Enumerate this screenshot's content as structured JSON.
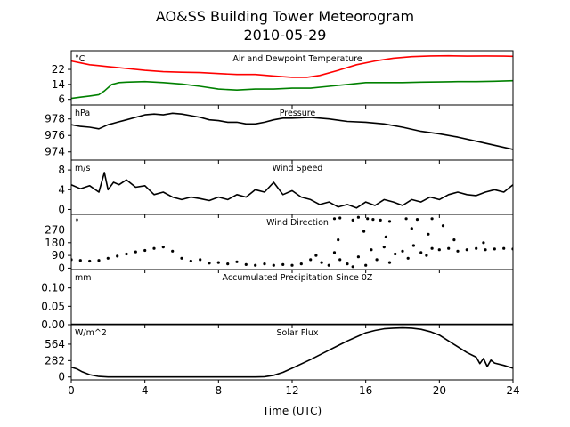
{
  "figure": {
    "title": "AO&SS Building Tower Meteorogram",
    "subtitle": "2010-05-29",
    "xlabel": "Time (UTC)"
  },
  "chart_data": [
    {
      "type": "line",
      "id": "temp",
      "title": "Air and Dewpoint Temperature",
      "unit": "°C",
      "xlim": [
        0,
        24
      ],
      "ylim": [
        3,
        32
      ],
      "yticks": [
        "6",
        "14",
        "22"
      ],
      "xticks": [
        "0",
        "4",
        "8",
        "12",
        "16",
        "20",
        "24"
      ],
      "series": [
        {
          "color": "#ff0000",
          "x": [
            0,
            0.5,
            1,
            1.5,
            2,
            3,
            4,
            5,
            6,
            7,
            8,
            9,
            10,
            11,
            12,
            12.8,
            13.5,
            14.5,
            15.5,
            16.5,
            17.5,
            18.5,
            19.5,
            20.5,
            21.5,
            22.5,
            23.5,
            24
          ],
          "y": [
            26.5,
            25.5,
            24.5,
            24,
            23.5,
            22.5,
            21.5,
            20.8,
            20.5,
            20.3,
            19.8,
            19.3,
            19.3,
            18.5,
            17.8,
            17.8,
            18.8,
            21.5,
            24.5,
            26.5,
            28,
            28.8,
            29.2,
            29.3,
            29.1,
            29.2,
            29.1,
            29
          ]
        },
        {
          "color": "#008000",
          "x": [
            0,
            0.5,
            1,
            1.5,
            1.8,
            2.2,
            2.6,
            3,
            4,
            5,
            6,
            7,
            8,
            9,
            10,
            11,
            12,
            13,
            14,
            15,
            16,
            17,
            18,
            19,
            20,
            21,
            22,
            23,
            24
          ],
          "y": [
            6.5,
            7.2,
            7.8,
            8.5,
            10.5,
            14,
            15,
            15.2,
            15.5,
            15,
            14.2,
            13,
            11.5,
            11,
            11.5,
            11.5,
            12,
            12,
            13,
            14,
            15,
            15,
            15,
            15.2,
            15.3,
            15.5,
            15.5,
            15.7,
            16
          ]
        }
      ]
    },
    {
      "type": "line",
      "id": "pressure",
      "title": "Pressure",
      "unit": "hPa",
      "xlim": [
        0,
        24
      ],
      "ylim": [
        973,
        979.7
      ],
      "yticks": [
        "974",
        "976",
        "978"
      ],
      "series": [
        {
          "color": "#000000",
          "x": [
            0,
            0.5,
            1,
            1.5,
            2,
            2.5,
            3,
            3.5,
            4,
            4.5,
            5,
            5.5,
            6,
            6.5,
            7,
            7.5,
            8,
            8.5,
            9,
            9.5,
            10,
            10.5,
            11,
            11.5,
            12,
            13,
            14,
            15,
            16,
            17,
            18,
            19,
            20,
            21,
            22,
            23,
            24
          ],
          "y": [
            977.3,
            977.1,
            977.0,
            976.8,
            977.3,
            977.6,
            977.9,
            978.2,
            978.5,
            978.6,
            978.5,
            978.7,
            978.6,
            978.4,
            978.2,
            977.9,
            977.8,
            977.6,
            977.6,
            977.4,
            977.4,
            977.6,
            977.9,
            978.1,
            978.1,
            978.2,
            978.0,
            977.7,
            977.6,
            977.4,
            977.0,
            976.5,
            976.2,
            975.8,
            975.3,
            974.8,
            974.3
          ]
        }
      ]
    },
    {
      "type": "line",
      "id": "wind_speed",
      "title": "Wind Speed",
      "unit": "m/s",
      "xlim": [
        0,
        24
      ],
      "ylim": [
        -1,
        10
      ],
      "yticks": [
        "0",
        "4",
        "8"
      ],
      "series": [
        {
          "color": "#000000",
          "x": [
            0,
            0.5,
            1,
            1.5,
            1.8,
            2,
            2.3,
            2.6,
            3,
            3.5,
            4,
            4.5,
            5,
            5.5,
            6,
            6.5,
            7,
            7.5,
            8,
            8.5,
            9,
            9.5,
            10,
            10.5,
            11,
            11.5,
            12,
            12.5,
            13,
            13.5,
            14,
            14.5,
            15,
            15.5,
            16,
            16.5,
            17,
            17.5,
            18,
            18.5,
            19,
            19.5,
            20,
            20.5,
            21,
            21.5,
            22,
            22.5,
            23,
            23.5,
            24
          ],
          "y": [
            5,
            4.2,
            4.8,
            3.5,
            7.5,
            4,
            5.5,
            5,
            6,
            4.5,
            4.8,
            3,
            3.5,
            2.5,
            2,
            2.5,
            2.2,
            1.8,
            2.5,
            2,
            3,
            2.5,
            4,
            3.5,
            5.5,
            3,
            3.8,
            2.5,
            2,
            1,
            1.5,
            0.5,
            1,
            0.3,
            1.5,
            0.8,
            2,
            1.5,
            0.8,
            2,
            1.5,
            2.5,
            2,
            3,
            3.5,
            3,
            2.8,
            3.5,
            4,
            3.5,
            5
          ]
        }
      ]
    },
    {
      "type": "scatter",
      "id": "wind_direction",
      "title": "Wind Direction",
      "unit": "°",
      "xlim": [
        0,
        24
      ],
      "ylim": [
        -10,
        380
      ],
      "yticks": [
        "0",
        "90",
        "180",
        "270"
      ],
      "series": [
        {
          "color": "#000000",
          "x": [
            0,
            0.5,
            1,
            1.5,
            2,
            2.5,
            3,
            3.5,
            4,
            4.5,
            5,
            5.5,
            6,
            6.5,
            7,
            7.5,
            8,
            8.5,
            9,
            9.5,
            10,
            10.5,
            11,
            11.5,
            12,
            12.5,
            13,
            13.3,
            13.6,
            14,
            14.3,
            14.6,
            15,
            15.3,
            15.6,
            16,
            16.3,
            16.6,
            17,
            17.3,
            17.6,
            18,
            18.3,
            18.6,
            19,
            19.3,
            19.6,
            20,
            20.5,
            21,
            21.5,
            22,
            22.5,
            23,
            23.5,
            24
          ],
          "y": [
            60,
            55,
            50,
            55,
            70,
            85,
            100,
            115,
            125,
            140,
            150,
            120,
            70,
            50,
            60,
            35,
            40,
            30,
            45,
            25,
            20,
            30,
            20,
            25,
            20,
            30,
            60,
            90,
            40,
            20,
            110,
            60,
            30,
            10,
            80,
            20,
            130,
            60,
            150,
            40,
            100,
            120,
            70,
            160,
            110,
            90,
            140,
            130,
            140,
            120,
            130,
            140,
            130,
            135,
            140,
            135
          ]
        },
        {
          "color": "#000000",
          "x": [
            14.3,
            14.6,
            15.3,
            15.6,
            16.1,
            16.4,
            16.8,
            17.3,
            18.2,
            18.8,
            19.6,
            20.2,
            14.5,
            15.9,
            17.1,
            18.5,
            19.4,
            20.8,
            22.4
          ],
          "y": [
            350,
            355,
            340,
            360,
            350,
            345,
            340,
            330,
            350,
            345,
            350,
            300,
            200,
            260,
            220,
            280,
            240,
            200,
            180
          ]
        }
      ]
    },
    {
      "type": "line",
      "id": "precip",
      "title": "Accumulated Precipitation Since 0Z",
      "unit": "mm",
      "xlim": [
        0,
        24
      ],
      "ylim": [
        0,
        0.15
      ],
      "yticks": [
        "0.00",
        "0.05",
        "0.10"
      ],
      "series": [
        {
          "color": "#000000",
          "x": [
            0,
            24
          ],
          "y": [
            0,
            0
          ]
        }
      ]
    },
    {
      "type": "line",
      "id": "solar",
      "title": "Solar Flux",
      "unit": "W/m^2",
      "xlim": [
        0,
        24
      ],
      "ylim": [
        -50,
        900
      ],
      "yticks": [
        "0",
        "282",
        "564"
      ],
      "series": [
        {
          "color": "#000000",
          "x": [
            0,
            0.3,
            0.6,
            1,
            1.5,
            2,
            3,
            4,
            5,
            6,
            7,
            8,
            9,
            10,
            10.5,
            11,
            11.5,
            12,
            13,
            14,
            15,
            16,
            16.5,
            17,
            17.5,
            18,
            18.5,
            19,
            19.5,
            20,
            20.5,
            21,
            21.5,
            22,
            22.2,
            22.4,
            22.6,
            22.8,
            23,
            23.5,
            24
          ],
          "y": [
            170,
            140,
            90,
            40,
            10,
            0,
            0,
            0,
            0,
            0,
            0,
            0,
            0,
            0,
            5,
            30,
            80,
            150,
            300,
            460,
            620,
            760,
            800,
            830,
            840,
            845,
            840,
            820,
            780,
            720,
            620,
            520,
            420,
            340,
            230,
            320,
            180,
            290,
            240,
            200,
            150
          ]
        }
      ]
    }
  ]
}
